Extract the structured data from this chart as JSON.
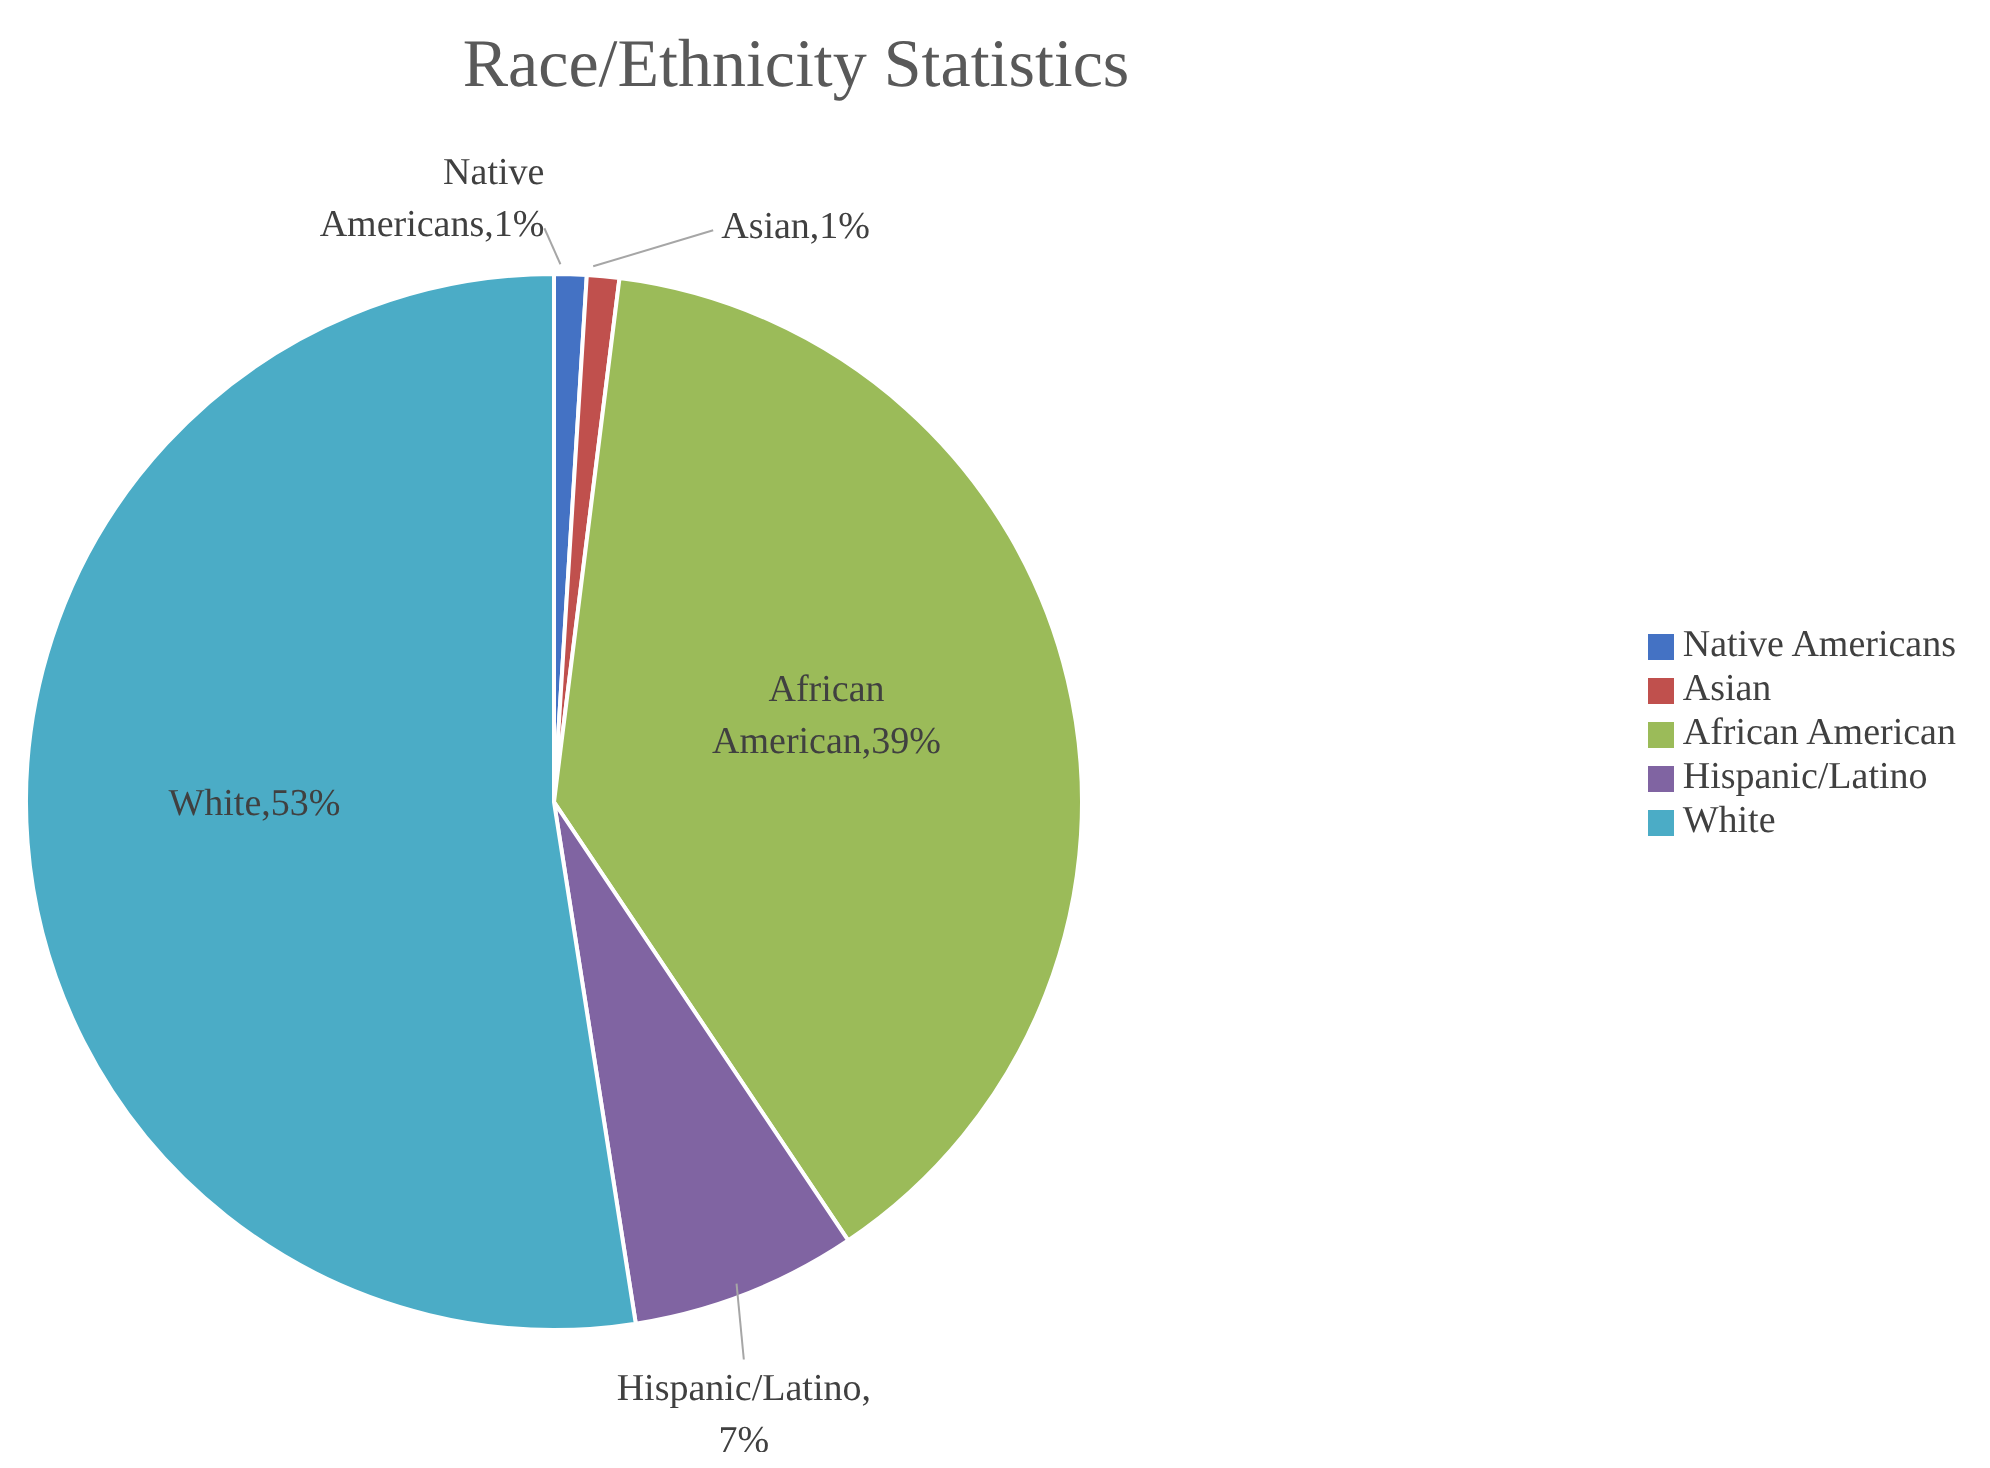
{
  "chart_data": {
    "type": "pie",
    "title": "Race/Ethnicity Statistics",
    "categories": [
      "Native Americans",
      "Asian",
      "African American",
      "Hispanic/Latino",
      "White"
    ],
    "values": [
      1,
      1,
      39,
      7,
      53
    ],
    "colors": [
      "#4472c4",
      "#c0504d",
      "#9bbb59",
      "#8064a2",
      "#4bacc6"
    ],
    "value_labels": [
      "Native Americans,1%",
      "Asian,1%",
      "African American,39%",
      "Hispanic/Latino, 7%",
      "White,53%"
    ],
    "legend": "right"
  }
}
